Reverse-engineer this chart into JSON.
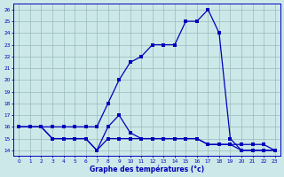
{
  "hours": [
    0,
    1,
    2,
    3,
    4,
    5,
    6,
    7,
    8,
    9,
    10,
    11,
    12,
    13,
    14,
    15,
    16,
    17,
    18,
    19,
    20,
    21,
    22,
    23
  ],
  "temp_upper": [
    16,
    16,
    16,
    16,
    16,
    16,
    16,
    16,
    18,
    20,
    21.5,
    22,
    23,
    23,
    23,
    25,
    25,
    26,
    24,
    15,
    14,
    14,
    14,
    14
  ],
  "temp_mid": [
    16,
    16,
    16,
    15,
    15,
    15,
    15,
    14,
    16,
    17,
    15.5,
    15,
    15,
    15,
    15,
    15,
    15,
    14.5,
    14.5,
    14.5,
    14.5,
    14.5,
    14.5,
    14
  ],
  "temp_lower": [
    16,
    16,
    16,
    15,
    15,
    15,
    15,
    14,
    15,
    15,
    15,
    15,
    15,
    15,
    15,
    15,
    15,
    14.5,
    14.5,
    14.5,
    14,
    14,
    14,
    14
  ],
  "line_color": "#0000bb",
  "bg_color": "#cce8e8",
  "grid_color": "#99bbbb",
  "xlabel": "Graphe des températures (°c)",
  "ylim": [
    13.5,
    26.5
  ],
  "xlim": [
    -0.5,
    23.5
  ],
  "yticks": [
    14,
    15,
    16,
    17,
    18,
    19,
    20,
    21,
    22,
    23,
    24,
    25,
    26
  ],
  "xticks": [
    0,
    1,
    2,
    3,
    4,
    5,
    6,
    7,
    8,
    9,
    10,
    11,
    12,
    13,
    14,
    15,
    16,
    17,
    18,
    19,
    20,
    21,
    22,
    23
  ]
}
